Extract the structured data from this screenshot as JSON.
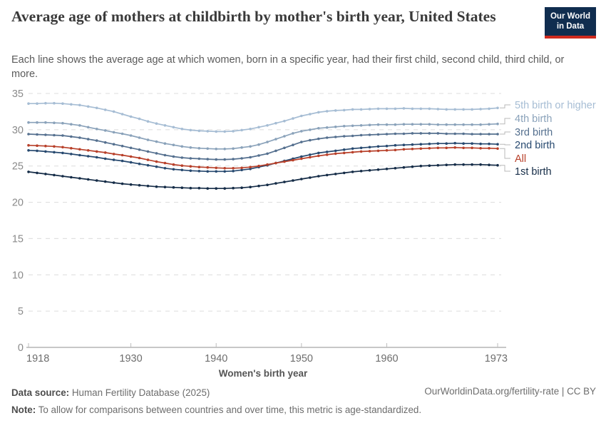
{
  "header": {
    "title": "Average age of mothers at childbirth by mother's birth year, United States",
    "subtitle": "Each line shows the average age at which women, born in a specific year, had their first child, second child, third child, or more.",
    "logo": {
      "line1": "Our World",
      "line2": "in Data"
    }
  },
  "chart_data": {
    "type": "line",
    "title": "Average age of mothers at childbirth by mother's birth year, United States",
    "xlabel": "Women's birth year",
    "ylabel": "",
    "xlim": [
      1918,
      1973
    ],
    "ylim": [
      0,
      35
    ],
    "x_ticks": [
      1918,
      1930,
      1940,
      1950,
      1960,
      1973
    ],
    "y_ticks": [
      0,
      5,
      10,
      15,
      20,
      25,
      30,
      35
    ],
    "grid": "horizontal dashed",
    "legend_position": "right end-of-line labels",
    "x": [
      1918,
      1919,
      1920,
      1921,
      1922,
      1923,
      1924,
      1925,
      1926,
      1927,
      1928,
      1929,
      1930,
      1931,
      1932,
      1933,
      1934,
      1935,
      1936,
      1937,
      1938,
      1939,
      1940,
      1941,
      1942,
      1943,
      1944,
      1945,
      1946,
      1947,
      1948,
      1949,
      1950,
      1951,
      1952,
      1953,
      1954,
      1955,
      1956,
      1957,
      1958,
      1959,
      1960,
      1961,
      1962,
      1963,
      1964,
      1965,
      1966,
      1967,
      1968,
      1969,
      1970,
      1971,
      1972,
      1973
    ],
    "series": [
      {
        "name": "5th birth or higher",
        "color": "#a6bdd4",
        "values": [
          33.6,
          33.6,
          33.65,
          33.65,
          33.6,
          33.5,
          33.4,
          33.2,
          33.0,
          32.75,
          32.5,
          32.15,
          31.8,
          31.5,
          31.15,
          30.85,
          30.6,
          30.35,
          30.1,
          29.95,
          29.85,
          29.8,
          29.75,
          29.75,
          29.8,
          29.95,
          30.1,
          30.35,
          30.6,
          30.9,
          31.2,
          31.55,
          31.9,
          32.15,
          32.4,
          32.55,
          32.65,
          32.7,
          32.8,
          32.8,
          32.85,
          32.9,
          32.9,
          32.9,
          32.95,
          32.9,
          32.9,
          32.9,
          32.85,
          32.8,
          32.8,
          32.8,
          32.8,
          32.85,
          32.9,
          33.0
        ]
      },
      {
        "name": "4th birth",
        "color": "#8aa2ba",
        "values": [
          31.0,
          31.0,
          31.0,
          30.95,
          30.9,
          30.75,
          30.6,
          30.35,
          30.1,
          29.9,
          29.65,
          29.45,
          29.2,
          28.9,
          28.6,
          28.35,
          28.1,
          27.9,
          27.7,
          27.55,
          27.45,
          27.4,
          27.35,
          27.35,
          27.4,
          27.55,
          27.7,
          27.95,
          28.3,
          28.7,
          29.1,
          29.5,
          29.8,
          30.0,
          30.2,
          30.3,
          30.4,
          30.5,
          30.55,
          30.6,
          30.65,
          30.7,
          30.7,
          30.7,
          30.75,
          30.75,
          30.75,
          30.75,
          30.7,
          30.7,
          30.7,
          30.7,
          30.7,
          30.7,
          30.75,
          30.8
        ]
      },
      {
        "name": "3rd birth",
        "color": "#55708f",
        "values": [
          29.4,
          29.35,
          29.3,
          29.25,
          29.2,
          29.05,
          28.9,
          28.7,
          28.5,
          28.25,
          28.0,
          27.75,
          27.5,
          27.25,
          27.0,
          26.75,
          26.5,
          26.3,
          26.15,
          26.05,
          26.0,
          25.95,
          25.9,
          25.9,
          25.95,
          26.05,
          26.2,
          26.45,
          26.7,
          27.1,
          27.5,
          27.9,
          28.3,
          28.55,
          28.75,
          28.9,
          29.0,
          29.1,
          29.15,
          29.25,
          29.3,
          29.35,
          29.4,
          29.45,
          29.45,
          29.5,
          29.5,
          29.5,
          29.5,
          29.45,
          29.45,
          29.45,
          29.4,
          29.4,
          29.4,
          29.4
        ]
      },
      {
        "name": "2nd birth",
        "color": "#27496f",
        "values": [
          27.15,
          27.1,
          27.0,
          26.9,
          26.8,
          26.65,
          26.5,
          26.35,
          26.2,
          26.0,
          25.85,
          25.7,
          25.5,
          25.3,
          25.1,
          24.9,
          24.7,
          24.55,
          24.45,
          24.35,
          24.3,
          24.25,
          24.25,
          24.25,
          24.3,
          24.45,
          24.6,
          24.85,
          25.1,
          25.4,
          25.7,
          26.0,
          26.3,
          26.55,
          26.8,
          26.95,
          27.1,
          27.25,
          27.4,
          27.5,
          27.6,
          27.7,
          27.75,
          27.85,
          27.9,
          27.95,
          28.0,
          28.05,
          28.1,
          28.1,
          28.15,
          28.1,
          28.1,
          28.05,
          28.05,
          28.0
        ]
      },
      {
        "name": "All",
        "color": "#b8402a",
        "values": [
          27.85,
          27.8,
          27.75,
          27.7,
          27.6,
          27.45,
          27.3,
          27.15,
          27.0,
          26.85,
          26.65,
          26.5,
          26.3,
          26.1,
          25.85,
          25.6,
          25.4,
          25.2,
          25.05,
          24.95,
          24.85,
          24.8,
          24.75,
          24.7,
          24.7,
          24.75,
          24.85,
          25.0,
          25.2,
          25.4,
          25.6,
          25.8,
          26.0,
          26.2,
          26.4,
          26.55,
          26.7,
          26.8,
          26.9,
          27.0,
          27.05,
          27.1,
          27.15,
          27.2,
          27.3,
          27.35,
          27.4,
          27.45,
          27.5,
          27.5,
          27.55,
          27.5,
          27.5,
          27.45,
          27.45,
          27.4
        ]
      },
      {
        "name": "1st birth",
        "color": "#152c47",
        "values": [
          24.2,
          24.05,
          23.9,
          23.75,
          23.6,
          23.45,
          23.3,
          23.15,
          23.0,
          22.85,
          22.7,
          22.55,
          22.45,
          22.35,
          22.25,
          22.15,
          22.1,
          22.05,
          22.0,
          21.95,
          21.95,
          21.9,
          21.9,
          21.9,
          21.95,
          22.0,
          22.1,
          22.25,
          22.4,
          22.6,
          22.8,
          23.0,
          23.2,
          23.4,
          23.6,
          23.75,
          23.9,
          24.05,
          24.2,
          24.3,
          24.4,
          24.5,
          24.6,
          24.7,
          24.8,
          24.9,
          25.0,
          25.05,
          25.1,
          25.15,
          25.2,
          25.2,
          25.2,
          25.2,
          25.15,
          25.1
        ]
      }
    ]
  },
  "footer": {
    "source_label": "Data source:",
    "source_text": " Human Fertility Database (2025)",
    "note_label": "Note:",
    "note_text": " To allow for comparisons between countries and over time, this metric is age-standardized.",
    "rights": "OurWorldinData.org/fertility-rate | CC BY"
  },
  "colors": {
    "logo_bg": "#102d4f",
    "logo_stripe": "#cf2a1e",
    "gridline": "#dcdcdc",
    "axis_line": "#8f8f8f",
    "highlight_series": "#b8402a"
  }
}
